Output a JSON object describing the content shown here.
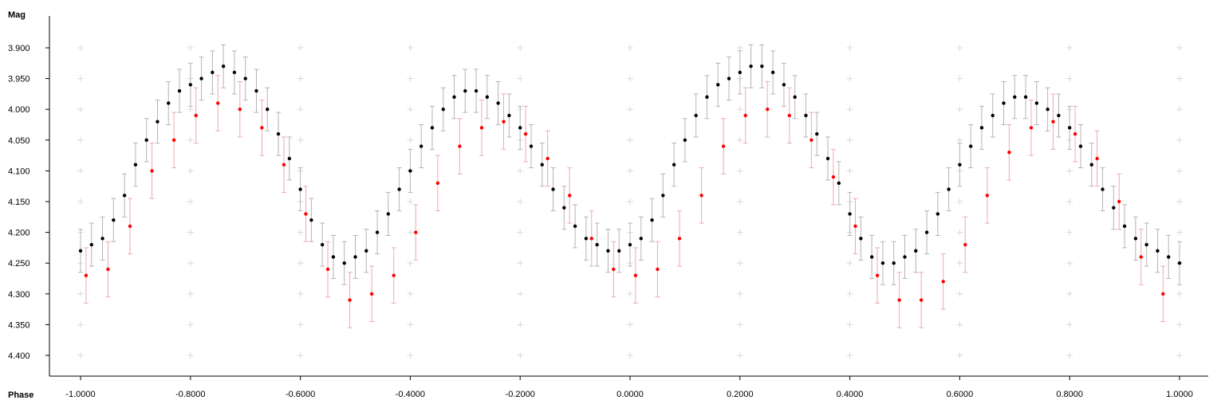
{
  "chart_data": {
    "type": "scatter",
    "title": "",
    "xlabel": "Phase",
    "ylabel": "Mag",
    "xlim": [
      -1.0,
      1.0
    ],
    "ylim": [
      4.4,
      3.9
    ],
    "y_inverted": true,
    "grid": "plus-markers",
    "error_bars": true,
    "x_ticks": [
      "-1.0000",
      "-0.8000",
      "-0.6000",
      "-0.4000",
      "-0.2000",
      "0.0000",
      "0.2000",
      "0.4000",
      "0.6000",
      "0.8000",
      "1.0000"
    ],
    "y_ticks": [
      "3.900",
      "3.950",
      "4.000",
      "4.050",
      "4.100",
      "4.150",
      "4.200",
      "4.250",
      "4.300",
      "4.350",
      "4.400"
    ],
    "series": [
      {
        "color": "#000000",
        "errorbar_color": "#b4b4b4",
        "points_x": [
          -1.0,
          -0.98,
          -0.96,
          -0.94,
          -0.92,
          -0.9,
          -0.88,
          -0.86,
          -0.84,
          -0.82,
          -0.8,
          -0.78,
          -0.76,
          -0.74,
          -0.72,
          -0.7,
          -0.68,
          -0.66,
          -0.64,
          -0.62,
          -0.6,
          -0.58,
          -0.56,
          -0.54,
          -0.52,
          -0.5,
          -0.48,
          -0.46,
          -0.44,
          -0.42,
          -0.4,
          -0.38,
          -0.36,
          -0.34,
          -0.32,
          -0.3,
          -0.28,
          -0.26,
          -0.24,
          -0.22,
          -0.2,
          -0.18,
          -0.16,
          -0.14,
          -0.12,
          -0.1,
          -0.08,
          -0.06,
          -0.04,
          -0.02,
          0.0,
          0.02,
          0.04,
          0.06,
          0.08,
          0.1,
          0.12,
          0.14,
          0.16,
          0.18,
          0.2,
          0.22,
          0.24,
          0.26,
          0.28,
          0.3,
          0.32,
          0.34,
          0.36,
          0.38,
          0.4,
          0.42,
          0.44,
          0.46,
          0.48,
          0.5,
          0.52,
          0.54,
          0.56,
          0.58,
          0.6,
          0.62,
          0.64,
          0.66,
          0.68,
          0.7,
          0.72,
          0.74,
          0.76,
          0.78,
          0.8,
          0.82,
          0.84,
          0.86,
          0.88,
          0.9,
          0.92,
          0.94,
          0.96,
          0.98,
          1.0
        ],
        "points_y": [
          4.23,
          4.22,
          4.21,
          4.18,
          4.14,
          4.09,
          4.05,
          4.02,
          3.99,
          3.97,
          3.96,
          3.95,
          3.94,
          3.93,
          3.94,
          3.95,
          3.97,
          4.0,
          4.04,
          4.08,
          4.13,
          4.18,
          4.22,
          4.24,
          4.25,
          4.24,
          4.23,
          4.2,
          4.17,
          4.13,
          4.1,
          4.06,
          4.03,
          4.0,
          3.98,
          3.97,
          3.97,
          3.98,
          3.99,
          4.01,
          4.03,
          4.06,
          4.09,
          4.13,
          4.16,
          4.19,
          4.21,
          4.22,
          4.23,
          4.23,
          4.22,
          4.21,
          4.18,
          4.14,
          4.09,
          4.05,
          4.01,
          3.98,
          3.96,
          3.95,
          3.94,
          3.93,
          3.93,
          3.94,
          3.96,
          3.98,
          4.01,
          4.04,
          4.08,
          4.12,
          4.17,
          4.21,
          4.24,
          4.25,
          4.25,
          4.24,
          4.23,
          4.2,
          4.17,
          4.13,
          4.09,
          4.06,
          4.03,
          4.01,
          3.99,
          3.98,
          3.98,
          3.99,
          4.0,
          4.01,
          4.03,
          4.06,
          4.09,
          4.13,
          4.16,
          4.19,
          4.21,
          4.22,
          4.23,
          4.24,
          4.25
        ],
        "error": 0.035
      },
      {
        "color": "#ff0000",
        "errorbar_color": "#f0aaaa",
        "points_x": [
          -0.99,
          -0.95,
          -0.91,
          -0.87,
          -0.83,
          -0.79,
          -0.75,
          -0.71,
          -0.67,
          -0.63,
          -0.59,
          -0.55,
          -0.51,
          -0.47,
          -0.43,
          -0.39,
          -0.35,
          -0.31,
          -0.27,
          -0.23,
          -0.19,
          -0.15,
          -0.11,
          -0.07,
          -0.03,
          0.01,
          0.05,
          0.09,
          0.13,
          0.17,
          0.21,
          0.25,
          0.29,
          0.33,
          0.37,
          0.41,
          0.45,
          0.49,
          0.53,
          0.57,
          0.61,
          0.65,
          0.69,
          0.73,
          0.77,
          0.81,
          0.85,
          0.89,
          0.93,
          0.97
        ],
        "points_y": [
          4.27,
          4.26,
          4.19,
          4.1,
          4.05,
          4.01,
          3.99,
          4.0,
          4.03,
          4.09,
          4.17,
          4.26,
          4.31,
          4.3,
          4.27,
          4.2,
          4.12,
          4.06,
          4.03,
          4.02,
          4.04,
          4.08,
          4.14,
          4.21,
          4.26,
          4.27,
          4.26,
          4.21,
          4.14,
          4.06,
          4.01,
          4.0,
          4.01,
          4.05,
          4.11,
          4.19,
          4.27,
          4.31,
          4.31,
          4.28,
          4.22,
          4.14,
          4.07,
          4.03,
          4.02,
          4.04,
          4.08,
          4.15,
          4.24,
          4.3
        ],
        "error": 0.045
      }
    ]
  }
}
